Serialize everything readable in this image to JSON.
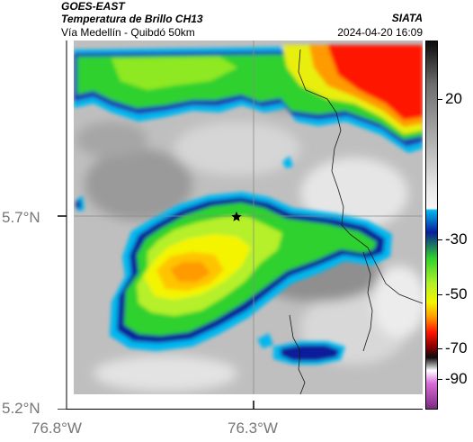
{
  "header": {
    "satellite": "GOES-EAST",
    "title": "Temperatura de Brillo CH13",
    "subtitle": "Vía Medellín - Quibdó 50km",
    "organization": "SIATA",
    "datetime": "2024-04-20 16:09"
  },
  "axes": {
    "lat_ticks": [
      "5.7°N",
      "5.2°N"
    ],
    "lon_ticks": [
      "76.8°W",
      "76.3°W"
    ]
  },
  "colorbar": {
    "ticks": [
      "20",
      "-30",
      "-50",
      "-70",
      "-90"
    ],
    "range": [
      -95,
      35
    ],
    "colors": {
      "warm_gray": "#c4c4c4",
      "cyan": "#00b7f0",
      "blue": "#0a1e9a",
      "green": "#2ed12e",
      "yellow": "#f4f400",
      "orange": "#ff9a00",
      "red": "#ff1800",
      "black": "#0c0c0c",
      "magenta": "#b44ab8"
    }
  },
  "map": {
    "marker": "star-icon",
    "grid_lines": [
      "lat 5.7",
      "lon 76.3"
    ]
  }
}
